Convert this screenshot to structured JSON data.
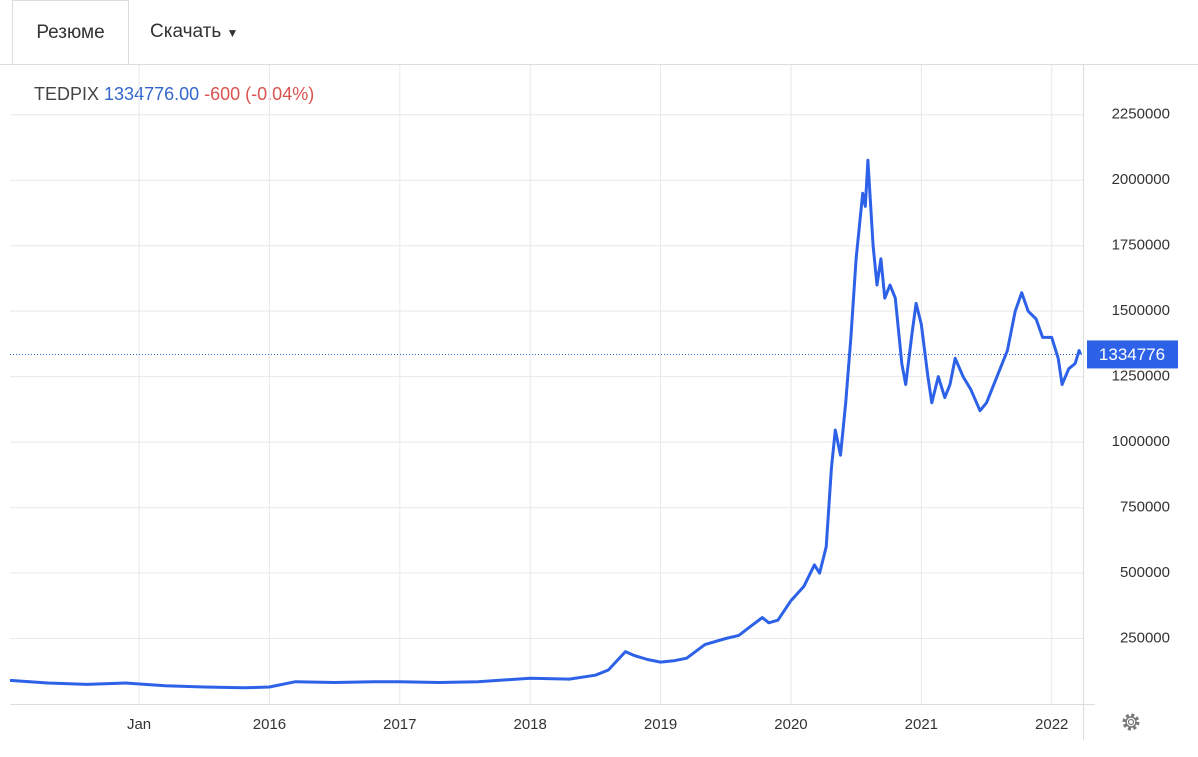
{
  "tabs": [
    "Резюме",
    "Скачать"
  ],
  "chart_data": {
    "type": "line",
    "header": {
      "ticker": "TEDPIX",
      "price": "1334776.00",
      "change": "-600 (-0.04%)"
    },
    "x": [
      2014.01,
      2014.3,
      2014.6,
      2014.9,
      2015.2,
      2015.5,
      2015.8,
      2016.0,
      2016.2,
      2016.5,
      2016.8,
      2017.0,
      2017.3,
      2017.6,
      2017.9,
      2018.0,
      2018.3,
      2018.5,
      2018.6,
      2018.73,
      2018.8,
      2018.9,
      2019.0,
      2019.1,
      2019.2,
      2019.34,
      2019.5,
      2019.6,
      2019.7,
      2019.78,
      2019.83,
      2019.9,
      2020.0,
      2020.1,
      2020.18,
      2020.22,
      2020.27,
      2020.31,
      2020.34,
      2020.38,
      2020.42,
      2020.46,
      2020.5,
      2020.55,
      2020.57,
      2020.59,
      2020.63,
      2020.66,
      2020.69,
      2020.72,
      2020.76,
      2020.8,
      2020.85,
      2020.88,
      2020.93,
      2020.96,
      2021.0,
      2021.05,
      2021.08,
      2021.13,
      2021.18,
      2021.22,
      2021.26,
      2021.32,
      2021.38,
      2021.45,
      2021.5,
      2021.58,
      2021.66,
      2021.72,
      2021.77,
      2021.82,
      2021.88,
      2021.93,
      2022.0,
      2022.05,
      2022.08,
      2022.13,
      2022.18,
      2022.21,
      2022.22
    ],
    "series": [
      {
        "name": "TEDPIX",
        "color": "#2d62e8",
        "values": [
          90000,
          80000,
          75000,
          80000,
          70000,
          65000,
          62000,
          65000,
          85000,
          82000,
          85000,
          85000,
          82000,
          85000,
          95000,
          98000,
          95000,
          110000,
          130000,
          200000,
          185000,
          170000,
          160000,
          165000,
          175000,
          227000,
          250000,
          262000,
          300000,
          330000,
          310000,
          320000,
          395000,
          450000,
          531000,
          500000,
          600000,
          900000,
          1046000,
          950000,
          1150000,
          1400000,
          1700000,
          1950000,
          1900000,
          2076000,
          1750000,
          1600000,
          1700000,
          1550000,
          1600000,
          1550000,
          1300000,
          1220000,
          1420000,
          1530000,
          1450000,
          1250000,
          1150000,
          1250000,
          1170000,
          1220000,
          1320000,
          1250000,
          1200000,
          1120000,
          1150000,
          1250000,
          1350000,
          1500000,
          1570000,
          1500000,
          1470000,
          1400000,
          1400000,
          1320000,
          1220000,
          1280000,
          1300000,
          1350000,
          1334776
        ]
      }
    ],
    "last_value": 1334776,
    "xlim": [
      2014.01,
      2022.24
    ],
    "xticks": [
      {
        "value": 2015,
        "label": "Jan"
      },
      2016,
      2017,
      2018,
      2019,
      2020,
      2021,
      2022
    ],
    "ylim": [
      0,
      2440000
    ],
    "yticks": [
      250000,
      500000,
      750000,
      1000000,
      1250000,
      1500000,
      1750000,
      2000000,
      2250000
    ],
    "grid": true
  }
}
